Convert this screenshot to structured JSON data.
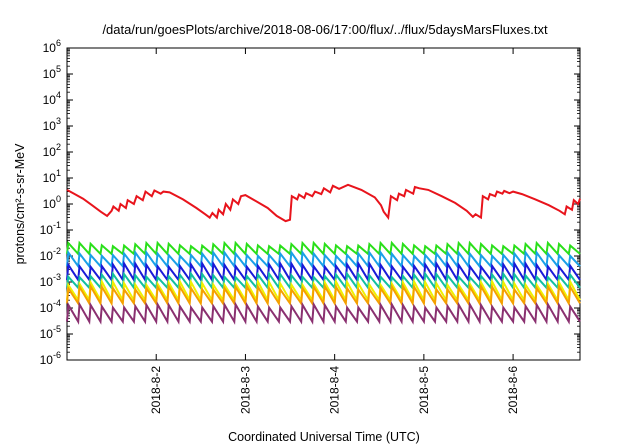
{
  "chart_data": {
    "type": "line",
    "title": "/data/run/goesPlots/archive/2018-08-06/17:00/flux/../flux/5daysMarsFluxes.txt",
    "xlabel": "Coordinated Universal Time (UTC)",
    "ylabel": "protons/cm²-s-sr-MeV",
    "yscale": "log",
    "ylim": [
      1e-06,
      1000000.0
    ],
    "xlim": [
      1.0,
      6.75
    ],
    "x_ticks": [
      {
        "x": 2,
        "label": "2018-8-2"
      },
      {
        "x": 3,
        "label": "2018-8-3"
      },
      {
        "x": 4,
        "label": "2018-8-4"
      },
      {
        "x": 5,
        "label": "2018-8-5"
      },
      {
        "x": 6,
        "label": "2018-8-6"
      }
    ],
    "y_ticks": [
      {
        "exp": -6,
        "label": "10-6"
      },
      {
        "exp": -5,
        "label": "10-5"
      },
      {
        "exp": -4,
        "label": "10-4"
      },
      {
        "exp": -3,
        "label": "10-3"
      },
      {
        "exp": -2,
        "label": "10-2"
      },
      {
        "exp": -1,
        "label": "10-1"
      },
      {
        "exp": 0,
        "label": "100"
      },
      {
        "exp": 1,
        "label": "101"
      },
      {
        "exp": 2,
        "label": "102"
      },
      {
        "exp": 3,
        "label": "103"
      },
      {
        "exp": 4,
        "label": "104"
      },
      {
        "exp": 5,
        "label": "105"
      },
      {
        "exp": 6,
        "label": "106"
      }
    ],
    "grid": false,
    "legend": "none",
    "series": [
      {
        "color": "#e8141c",
        "shape": "irregular",
        "x": [
          1.0,
          1.08,
          1.18,
          1.28,
          1.38,
          1.45,
          1.5,
          1.52,
          1.58,
          1.6,
          1.66,
          1.68,
          1.75,
          1.78,
          1.85,
          1.88,
          1.95,
          1.98,
          2.05,
          2.08,
          2.15,
          2.3,
          2.45,
          2.55,
          2.6,
          2.63,
          2.68,
          2.7,
          2.75,
          2.78,
          2.83,
          2.86,
          2.92,
          2.95,
          3.0,
          3.1,
          3.25,
          3.35,
          3.45,
          3.5,
          3.52,
          3.58,
          3.6,
          3.66,
          3.68,
          3.75,
          3.78,
          3.85,
          3.88,
          3.95,
          3.98,
          4.05,
          4.15,
          4.3,
          4.45,
          4.52,
          4.55,
          4.6,
          4.63,
          4.7,
          4.72,
          4.78,
          4.8,
          4.88,
          4.9,
          4.95,
          5.05,
          5.2,
          5.35,
          5.48,
          5.55,
          5.58,
          5.64,
          5.66,
          5.72,
          5.74,
          5.8,
          5.82,
          5.88,
          5.9,
          5.96,
          6.0,
          6.1,
          6.25,
          6.4,
          6.52,
          6.58,
          6.6,
          6.66,
          6.68,
          6.73,
          6.75
        ],
        "y": [
          3.5,
          2.5,
          1.6,
          0.9,
          0.5,
          0.35,
          0.55,
          0.8,
          0.55,
          1.0,
          0.7,
          1.4,
          1.0,
          2.0,
          1.4,
          3.0,
          2.0,
          3.3,
          2.5,
          3.0,
          2.8,
          1.5,
          0.7,
          0.4,
          0.3,
          0.45,
          0.3,
          0.6,
          0.4,
          1.0,
          0.6,
          1.5,
          1.0,
          2.0,
          2.2,
          1.4,
          0.7,
          0.35,
          0.22,
          0.25,
          2.0,
          1.5,
          2.3,
          1.7,
          2.6,
          2.0,
          3.0,
          2.4,
          4.0,
          2.8,
          5.0,
          3.8,
          5.5,
          3.5,
          1.8,
          0.9,
          0.5,
          0.3,
          2.0,
          1.4,
          2.5,
          2.0,
          3.5,
          2.5,
          4.5,
          4.0,
          3.5,
          2.0,
          1.1,
          0.55,
          0.32,
          0.4,
          0.3,
          2.0,
          1.5,
          2.4,
          2.0,
          3.0,
          2.5,
          3.2,
          2.6,
          3.0,
          2.4,
          1.5,
          0.9,
          0.55,
          0.4,
          0.8,
          0.6,
          1.4,
          1.0,
          1.6
        ]
      },
      {
        "color": "#2adf1a",
        "shape": "sawtooth",
        "peak": 0.028,
        "trough": 0.012
      },
      {
        "color": "#1aa0e8",
        "shape": "sawtooth",
        "peak": 0.012,
        "trough": 0.004
      },
      {
        "color": "#1a1ad8",
        "shape": "sawtooth",
        "peak": 0.0045,
        "trough": 0.0012
      },
      {
        "color": "#12c0a0",
        "shape": "sawtooth",
        "peak": 0.0018,
        "trough": 0.0006
      },
      {
        "color": "#f0f000",
        "shape": "sawtooth",
        "peak": 0.0009,
        "trough": 0.0002
      },
      {
        "color": "#f5a000",
        "shape": "sawtooth",
        "peak": 0.0006,
        "trough": 0.00015
      },
      {
        "color": "#8a3070",
        "shape": "sawtooth",
        "peak": 0.00012,
        "trough": 3e-05
      }
    ]
  }
}
